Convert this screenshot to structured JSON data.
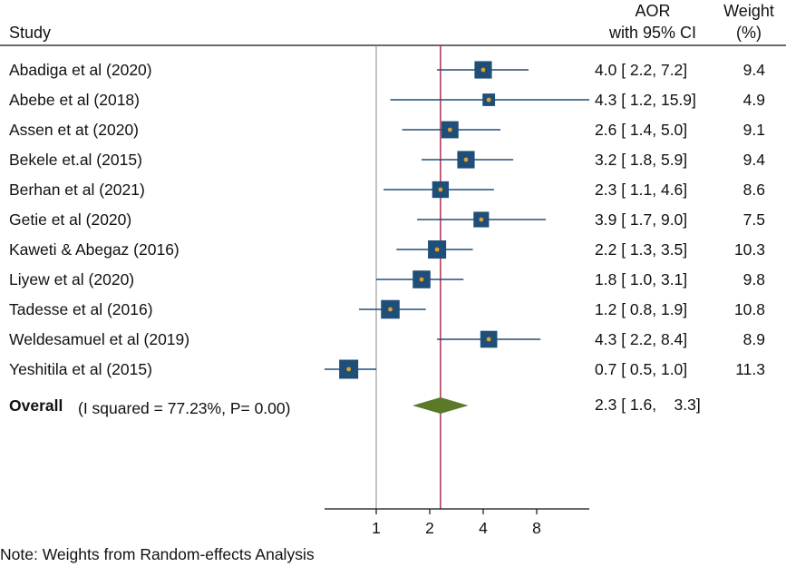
{
  "chart_data": {
    "type": "forest",
    "headers": {
      "study": "Study",
      "effect_line1": "AOR",
      "effect_line2": "with 95% CI",
      "weight_line1": "Weight",
      "weight_line2": "(%)"
    },
    "studies": [
      {
        "name": "Abadiga et al (2020)",
        "est": 4.0,
        "lo": 2.2,
        "hi": 7.2,
        "ci_text": "4.0 [ 2.2,    7.2]",
        "weight": "9.4"
      },
      {
        "name": "Abebe et al (2018)",
        "est": 4.3,
        "lo": 1.2,
        "hi": 15.9,
        "ci_text": "4.3 [ 1.2,  15.9]",
        "weight": "4.9"
      },
      {
        "name": "Assen et at (2020)",
        "est": 2.6,
        "lo": 1.4,
        "hi": 5.0,
        "ci_text": "2.6 [ 1.4,    5.0]",
        "weight": "9.1"
      },
      {
        "name": "Bekele et.al (2015)",
        "est": 3.2,
        "lo": 1.8,
        "hi": 5.9,
        "ci_text": "3.2 [ 1.8,    5.9]",
        "weight": "9.4"
      },
      {
        "name": "Berhan et al (2021)",
        "est": 2.3,
        "lo": 1.1,
        "hi": 4.6,
        "ci_text": "2.3 [ 1.1,    4.6]",
        "weight": "8.6"
      },
      {
        "name": "Getie et al (2020)",
        "est": 3.9,
        "lo": 1.7,
        "hi": 9.0,
        "ci_text": "3.9 [ 1.7,    9.0]",
        "weight": "7.5"
      },
      {
        "name": "Kaweti & Abegaz (2016)",
        "est": 2.2,
        "lo": 1.3,
        "hi": 3.5,
        "ci_text": "2.2 [ 1.3,    3.5]",
        "weight": "10.3"
      },
      {
        "name": "Liyew et al (2020)",
        "est": 1.8,
        "lo": 1.0,
        "hi": 3.1,
        "ci_text": "1.8 [ 1.0,    3.1]",
        "weight": "9.8"
      },
      {
        "name": "Tadesse et al (2016)",
        "est": 1.2,
        "lo": 0.8,
        "hi": 1.9,
        "ci_text": "1.2 [ 0.8,    1.9]",
        "weight": "10.8"
      },
      {
        "name": "Weldesamuel et al (2019)",
        "est": 4.3,
        "lo": 2.2,
        "hi": 8.4,
        "ci_text": "4.3 [ 2.2,    8.4]",
        "weight": "8.9"
      },
      {
        "name": "Yeshitila et al (2015)",
        "est": 0.7,
        "lo": 0.5,
        "hi": 1.0,
        "ci_text": "0.7 [ 0.5,    1.0]",
        "weight": "11.3"
      }
    ],
    "overall": {
      "label": "Overall",
      "stats": "(I squared = 77.23%, P= 0.00)",
      "est": 2.3,
      "lo": 1.6,
      "hi": 3.3,
      "ci_text": "2.3 [ 1.6,    3.3]"
    },
    "x_scale": "log",
    "x_ticks": [
      {
        "value": 1,
        "label": "1"
      },
      {
        "value": 2,
        "label": "2"
      },
      {
        "value": 4,
        "label": "4"
      },
      {
        "value": 8,
        "label": "8"
      }
    ],
    "reference_value": 1,
    "note": "Note: Weights from Random-effects Analysis",
    "colors": {
      "box": "#1f4e79",
      "dot": "#e0a030",
      "diamond": "#5a7a2a",
      "overall_line": "#b03050",
      "null_line": "#888888",
      "ci_line": "#1f4e79"
    }
  }
}
